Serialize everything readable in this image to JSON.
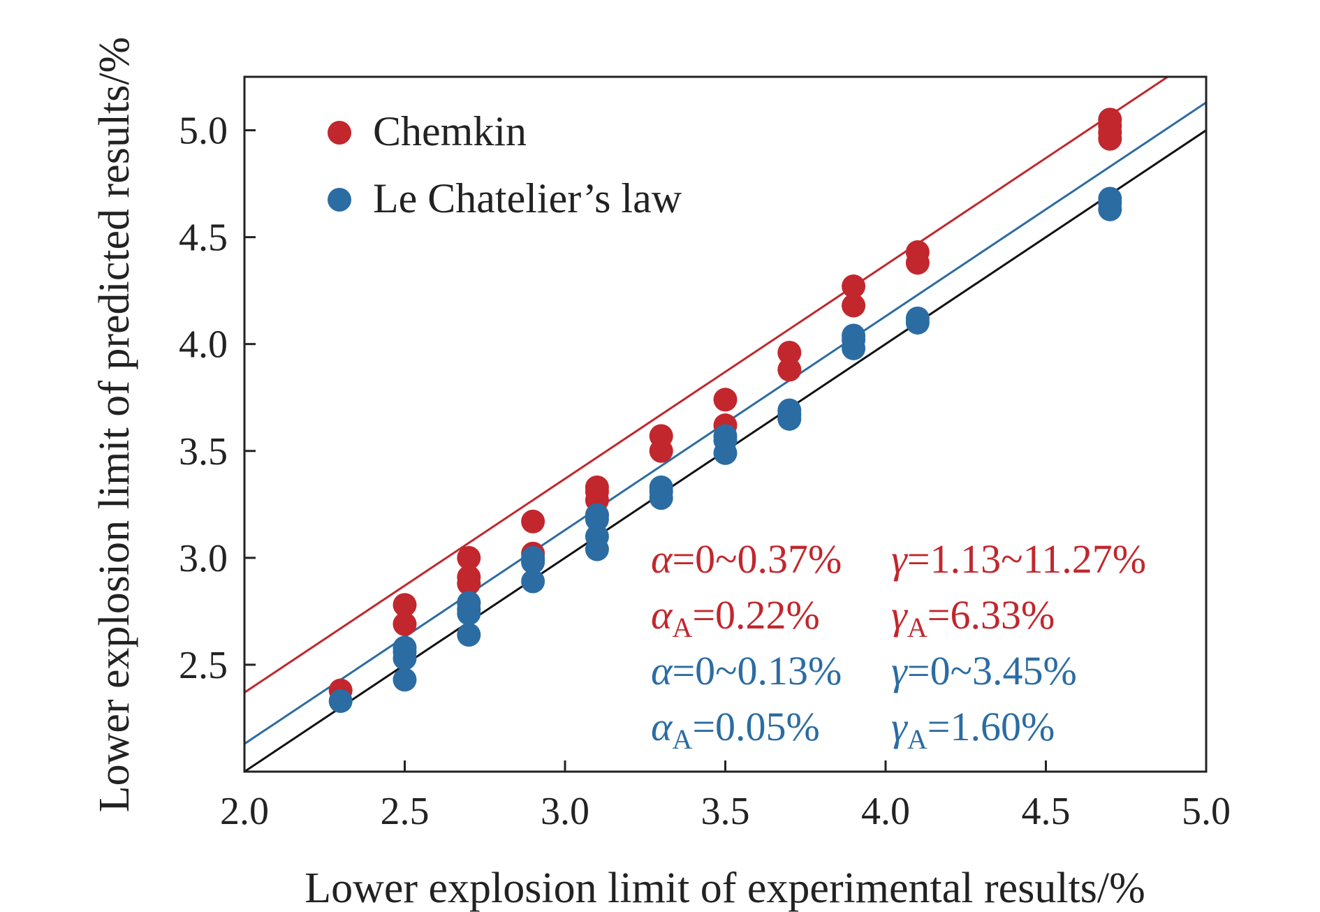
{
  "chart_data": {
    "type": "scatter",
    "title": "",
    "xlabel": "Lower explosion limit of experimental results/%",
    "ylabel": "Lower explosion limit of predicted results/%",
    "xlim": [
      2.0,
      5.0
    ],
    "ylim": [
      2.0,
      5.25
    ],
    "x_ticks": [
      "2.0",
      "2.5",
      "3.0",
      "3.5",
      "4.0",
      "4.5",
      "5.0"
    ],
    "y_ticks": [
      "2.5",
      "3.0",
      "3.5",
      "4.0",
      "4.5",
      "5.0"
    ],
    "legend_position": "top-left",
    "colors": {
      "chemkin": "#c1272d",
      "chatelier": "#2b6ca3",
      "identity": "#111111"
    },
    "series": [
      {
        "name": "Chemkin",
        "color": "#c1272d",
        "x": [
          2.3,
          2.5,
          2.5,
          2.7,
          2.7,
          2.7,
          2.7,
          2.9,
          2.9,
          2.9,
          3.1,
          3.1,
          3.1,
          3.1,
          3.3,
          3.3,
          3.5,
          3.5,
          3.7,
          3.7,
          3.9,
          3.9,
          4.1,
          4.1,
          4.7,
          4.7,
          4.7,
          4.7
        ],
        "y": [
          2.38,
          2.78,
          2.69,
          3.0,
          2.91,
          2.88,
          2.79,
          3.17,
          3.02,
          2.99,
          3.33,
          3.31,
          3.27,
          3.2,
          3.57,
          3.5,
          3.74,
          3.62,
          3.96,
          3.88,
          4.27,
          4.18,
          4.43,
          4.38,
          5.05,
          5.02,
          4.99,
          4.96
        ]
      },
      {
        "name": "Le Chatelier’s law",
        "color": "#2b6ca3",
        "x": [
          2.3,
          2.5,
          2.5,
          2.5,
          2.5,
          2.7,
          2.7,
          2.7,
          2.7,
          2.9,
          2.9,
          2.9,
          3.1,
          3.1,
          3.1,
          3.1,
          3.3,
          3.3,
          3.3,
          3.5,
          3.5,
          3.5,
          3.7,
          3.7,
          3.7,
          3.9,
          3.9,
          3.9,
          4.1,
          4.1,
          4.7,
          4.7,
          4.7
        ],
        "y": [
          2.33,
          2.58,
          2.56,
          2.53,
          2.43,
          2.79,
          2.76,
          2.74,
          2.64,
          3.0,
          2.98,
          2.89,
          3.2,
          3.18,
          3.1,
          3.04,
          3.33,
          3.31,
          3.28,
          3.57,
          3.55,
          3.49,
          3.69,
          3.67,
          3.65,
          4.04,
          4.02,
          3.98,
          4.12,
          4.1,
          4.68,
          4.66,
          4.63
        ]
      }
    ],
    "fit_lines": [
      {
        "series": "Chemkin",
        "color": "#c1272d",
        "x": [
          2.0,
          5.0
        ],
        "y": [
          2.37,
          5.37
        ]
      },
      {
        "series": "Le Chatelier’s law",
        "color": "#2b6ca3",
        "x": [
          2.0,
          5.0
        ],
        "y": [
          2.13,
          5.13
        ]
      },
      {
        "series": "identity",
        "color": "#111111",
        "x": [
          2.0,
          5.0
        ],
        "y": [
          2.0,
          5.0
        ]
      }
    ],
    "annotations": [
      {
        "color": "#c1272d",
        "a_sym": "α",
        "a_val": "=0~0.37%",
        "g_sym": "γ",
        "g_val": "=1.13~11.27%"
      },
      {
        "color": "#c1272d",
        "a_sym": "α",
        "a_sub": "A",
        "a_val": "=0.22%",
        "g_sym": "γ",
        "g_sub": "A",
        "g_val": "=6.33%"
      },
      {
        "color": "#2b6ca3",
        "a_sym": "α",
        "a_val": "=0~0.13%",
        "g_sym": "γ",
        "g_val": "=0~3.45%"
      },
      {
        "color": "#2b6ca3",
        "a_sym": "α",
        "a_sub": "A",
        "a_val": "=0.05%",
        "g_sym": "γ",
        "g_sub": "A",
        "g_val": "=1.60%"
      }
    ]
  }
}
